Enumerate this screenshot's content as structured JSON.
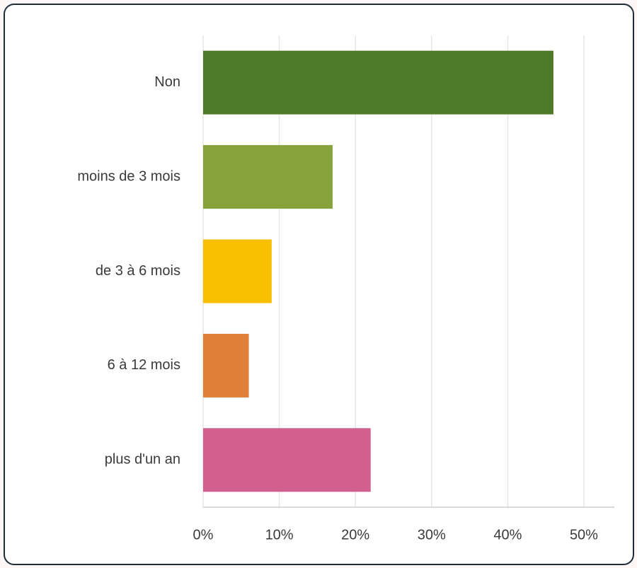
{
  "chart_data": {
    "type": "hbar",
    "categories": [
      "Non",
      "moins de 3 mois",
      "de 3 à 6 mois",
      "6 à 12 mois",
      "plus d'un an"
    ],
    "values": [
      46,
      17,
      9,
      6,
      22
    ],
    "colors": [
      "#4e7a2a",
      "#86a33b",
      "#f8be00",
      "#e07f37",
      "#d35f8f"
    ],
    "xlim": [
      0,
      54
    ],
    "xticks": [
      {
        "value": 0,
        "label": "0%"
      },
      {
        "value": 10,
        "label": "10%"
      },
      {
        "value": 20,
        "label": "20%"
      },
      {
        "value": 30,
        "label": "30%"
      },
      {
        "value": 40,
        "label": "40%"
      },
      {
        "value": 50,
        "label": "50%"
      }
    ],
    "grid": true
  }
}
